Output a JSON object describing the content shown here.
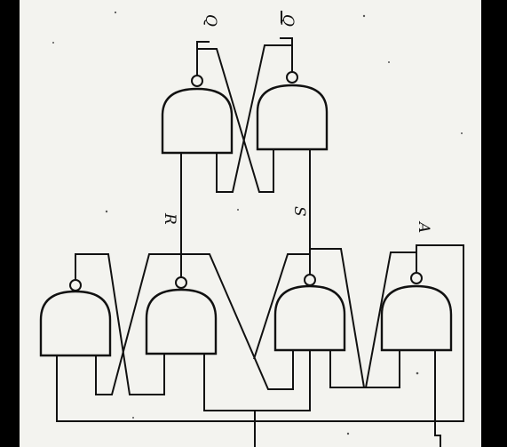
{
  "diagram": {
    "labels": {
      "q": "Q",
      "q_bar": "Q",
      "r": "R",
      "s": "S",
      "a": "A"
    }
  }
}
